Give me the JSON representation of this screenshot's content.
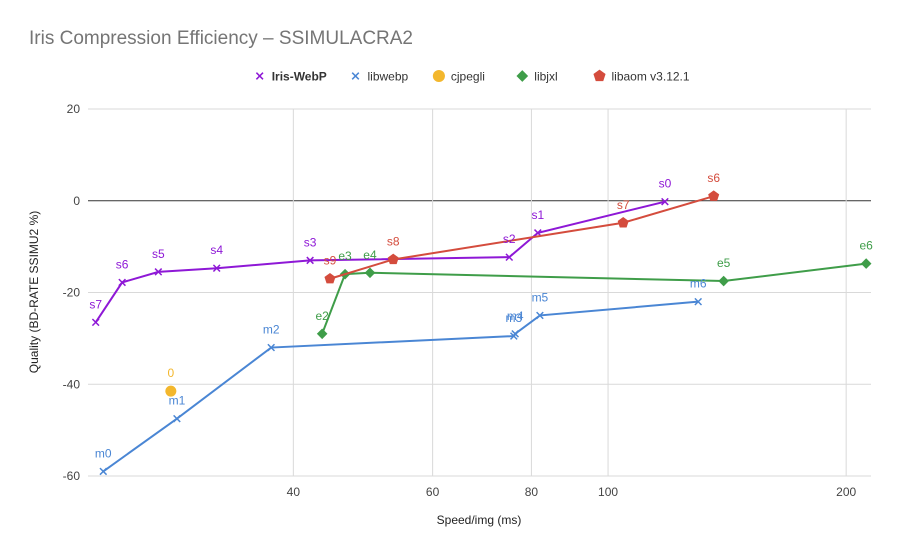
{
  "chart_data": {
    "type": "scatter",
    "title": "Iris Compression Efficiency – SSIMULACRA2",
    "xlabel": "Speed/img (ms)",
    "ylabel": "Quality (BD-RATE SSIMU2 %)",
    "x_scale": "log",
    "xlim": [
      22,
      215
    ],
    "ylim": [
      -60,
      20
    ],
    "x_ticks": [
      40,
      60,
      80,
      100,
      200
    ],
    "x_tick_labels": [
      "40",
      "60",
      "80",
      "100",
      "200"
    ],
    "y_ticks": [
      20,
      0,
      -20,
      -40,
      -60
    ],
    "y_tick_labels": [
      "20",
      "0",
      "-20",
      "-40",
      "-60"
    ],
    "grid": true,
    "legend_position": "top",
    "series": [
      {
        "name": "Iris-WebP",
        "color": "#8e18d6",
        "marker": "x",
        "bold_legend": true,
        "connected": true,
        "points": [
          {
            "x": 22.5,
            "y": -26.5,
            "label": "s7"
          },
          {
            "x": 24.3,
            "y": -17.8,
            "label": "s6"
          },
          {
            "x": 27.0,
            "y": -15.5,
            "label": "s5"
          },
          {
            "x": 32.0,
            "y": -14.7,
            "label": "s4"
          },
          {
            "x": 42.0,
            "y": -13.0,
            "label": "s3"
          },
          {
            "x": 75.0,
            "y": -12.3,
            "label": "s2"
          },
          {
            "x": 81.5,
            "y": -7.0,
            "label": "s1"
          },
          {
            "x": 118.0,
            "y": -0.2,
            "label": "s0"
          }
        ]
      },
      {
        "name": "libwebp",
        "color": "#4a86d4",
        "marker": "x",
        "connected": true,
        "points": [
          {
            "x": 23.0,
            "y": -59.0,
            "label": "m0"
          },
          {
            "x": 28.5,
            "y": -47.5,
            "label": "m1"
          },
          {
            "x": 37.5,
            "y": -32.0,
            "label": "m2"
          },
          {
            "x": 76.0,
            "y": -29.5,
            "label": "m3"
          },
          {
            "x": 76.3,
            "y": -29.0,
            "label": "m4"
          },
          {
            "x": 82.0,
            "y": -25.0,
            "label": "m5"
          },
          {
            "x": 130.0,
            "y": -22.0,
            "label": "m6"
          }
        ]
      },
      {
        "name": "cjpegli",
        "color": "#f3b72d",
        "marker": "circle",
        "connected": false,
        "points": [
          {
            "x": 28.0,
            "y": -41.5,
            "label": "0"
          }
        ]
      },
      {
        "name": "libjxl",
        "color": "#3f9d49",
        "marker": "diamond",
        "connected": true,
        "points": [
          {
            "x": 43.5,
            "y": -29.0,
            "label": "e2"
          },
          {
            "x": 46.5,
            "y": -16.0,
            "label": "e3"
          },
          {
            "x": 50.0,
            "y": -15.7,
            "label": "e4"
          },
          {
            "x": 140.0,
            "y": -17.5,
            "label": "e5"
          },
          {
            "x": 212.0,
            "y": -13.7,
            "label": "e6"
          }
        ]
      },
      {
        "name": "libaom v3.12.1",
        "color": "#d44c3d",
        "marker": "pentagon",
        "connected": true,
        "points": [
          {
            "x": 44.5,
            "y": -17.0,
            "label": "s9"
          },
          {
            "x": 53.5,
            "y": -12.8,
            "label": "s8"
          },
          {
            "x": 104.5,
            "y": -4.8,
            "label": "s7"
          },
          {
            "x": 136.0,
            "y": 1.0,
            "label": "s6"
          }
        ]
      }
    ]
  }
}
